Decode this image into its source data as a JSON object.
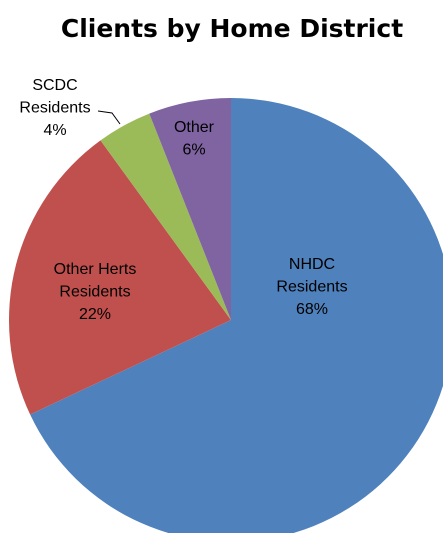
{
  "chart_data": {
    "type": "pie",
    "title": "Clients by Home District",
    "categories": [
      "NHDC Residents",
      "Other Herts Residents",
      "SCDC Residents",
      "Other"
    ],
    "values": [
      68,
      22,
      4,
      6
    ],
    "value_labels": [
      "68%",
      "22%",
      "4%",
      "6%"
    ],
    "colors": [
      "#4f81bd",
      "#c0504d",
      "#9bbb59",
      "#8064a2"
    ]
  }
}
